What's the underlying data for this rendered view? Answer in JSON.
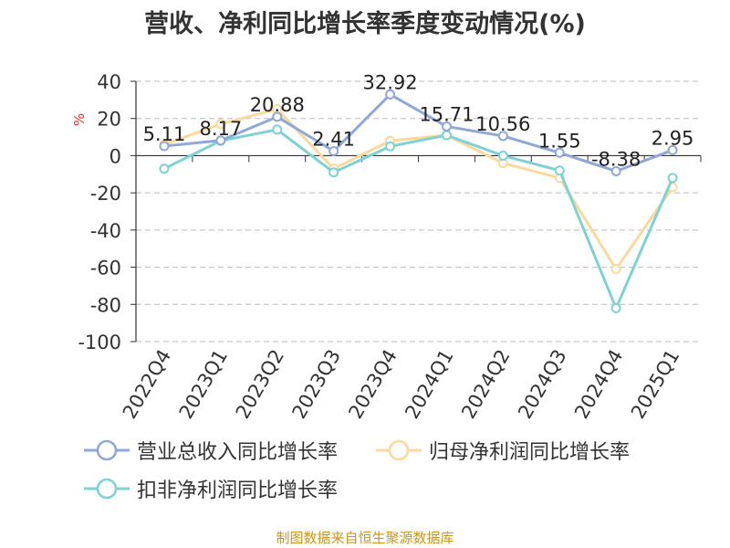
{
  "title": "营收、净利同比增长率季度变动情况(%)",
  "source": "制图数据来自恒生聚源数据库",
  "chart_data": {
    "type": "line",
    "title": "营收、净利同比增长率季度变动情况(%)",
    "ylabel": "%",
    "xlabel": "",
    "ylim": [
      -100,
      40
    ],
    "yticks": [
      40,
      20,
      0,
      -20,
      -40,
      -60,
      -80,
      -100
    ],
    "grid": true,
    "legend_position": "bottom",
    "categories": [
      "2022Q4",
      "2023Q1",
      "2023Q2",
      "2023Q3",
      "2023Q4",
      "2024Q1",
      "2024Q2",
      "2024Q3",
      "2024Q4",
      "2025Q1"
    ],
    "series": [
      {
        "name": "营业总收入同比增长率",
        "color": "#8fa8d8",
        "values": [
          5.11,
          8.17,
          20.88,
          2.41,
          32.92,
          15.71,
          10.56,
          1.55,
          -8.38,
          2.95
        ],
        "labels": [
          "5.11",
          "8.17",
          "20.88",
          "2.41",
          "32.92",
          "15.71",
          "10.56",
          "1.55",
          "-8.38",
          "2.95"
        ]
      },
      {
        "name": "归母净利润同比增长率",
        "color": "#fbd89b",
        "values": [
          6,
          17,
          25,
          -7,
          8,
          11,
          -4,
          -12,
          -61,
          -17
        ]
      },
      {
        "name": "扣非净利润同比增长率",
        "color": "#7fd2d4",
        "values": [
          -7,
          8,
          14,
          -9,
          5,
          11,
          0,
          -8,
          -82,
          -12
        ]
      }
    ]
  }
}
